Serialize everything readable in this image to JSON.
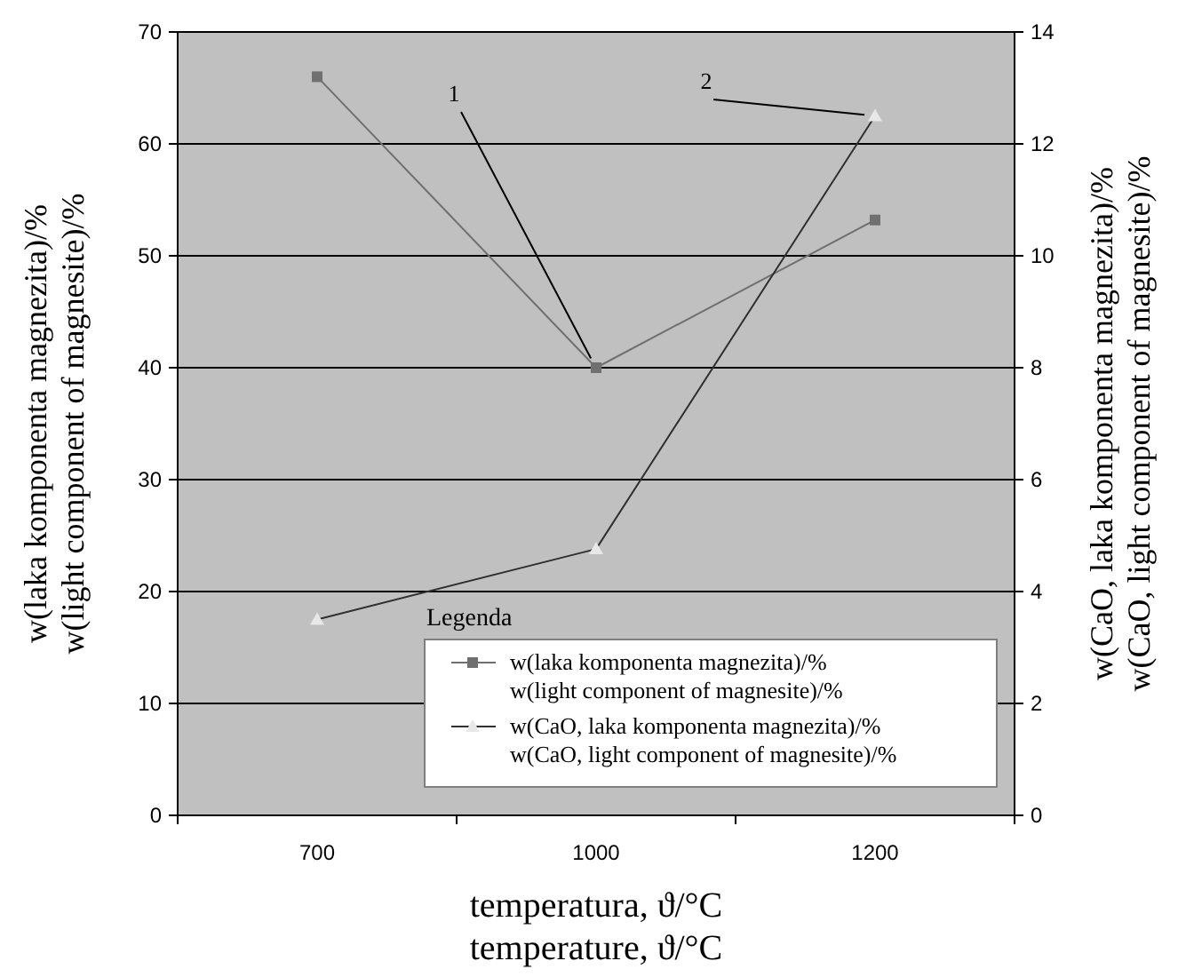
{
  "chart_data": {
    "type": "line",
    "categories": [
      "700",
      "1000",
      "1200"
    ],
    "series": [
      {
        "name": "w(laka komponenta magnezita)/%\nw(light component of magnesite)/%",
        "color": "#707070",
        "marker": "square",
        "values": [
          66,
          40,
          53.2
        ]
      },
      {
        "name": "w(CaO, laka komponenta magnezita)/%\nw(CaO, light component of magnesite)/%",
        "color": "#303030",
        "marker": "triangle",
        "axis": "y2",
        "values": [
          3.5,
          4.76,
          12.5
        ]
      }
    ],
    "ylim": [
      0,
      70
    ],
    "yticks": [
      0,
      10,
      20,
      30,
      40,
      50,
      60,
      70
    ],
    "y2lim": [
      0,
      14
    ],
    "y2ticks": [
      0,
      2,
      4,
      6,
      8,
      10,
      12,
      14
    ],
    "ylabel": "w(laka komponenta magnezita)/%\nw(light component of magnesite)/%",
    "y2label": "w(CaO, laka komponenta magnezita)/%\nw(CaO, light component of magnesite)/%",
    "xlabel": "temperatura, ϑ/°C\ntemperature, ϑ/°C",
    "annotations": [
      {
        "text": "1",
        "x": "1000",
        "y": 40
      },
      {
        "text": "2",
        "x": "1200",
        "y": 62.5
      }
    ],
    "legend_title": "Legenda",
    "legend": "bottom right",
    "grid": "y"
  }
}
